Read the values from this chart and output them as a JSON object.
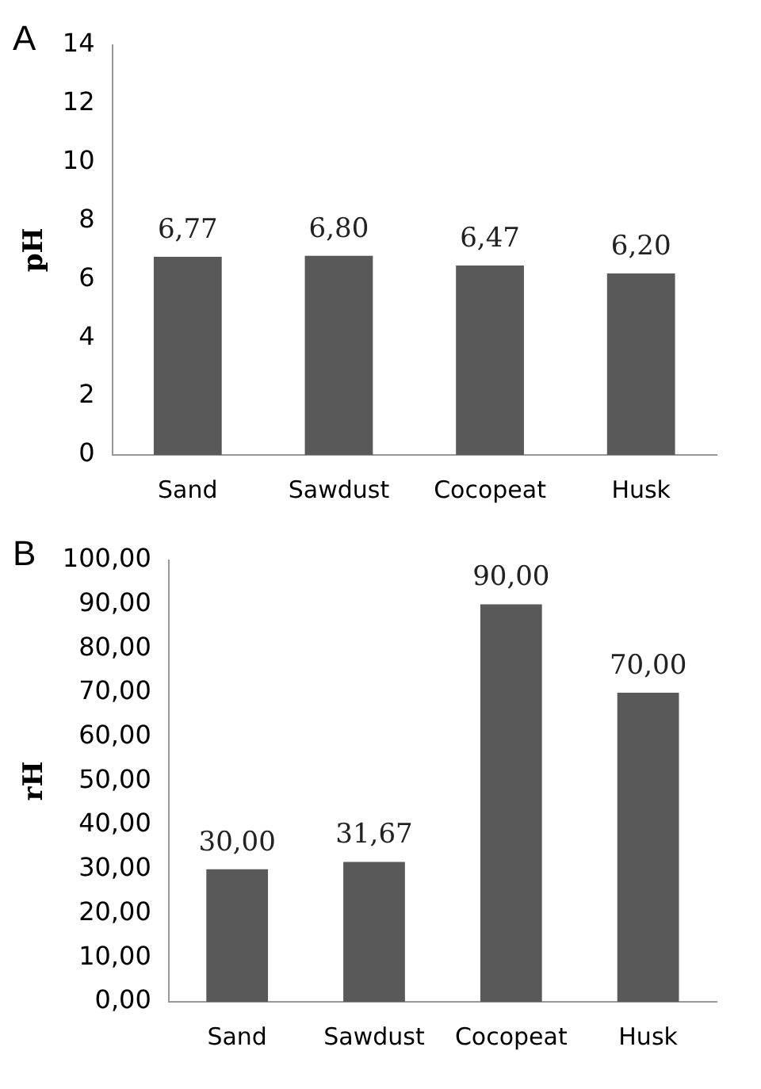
{
  "chart_data": [
    {
      "type": "bar",
      "title": "A",
      "ylabel": "pH",
      "categories": [
        "Sand",
        "Sawdust",
        "Cocopeat",
        "Husk"
      ],
      "values": [
        6.77,
        6.8,
        6.47,
        6.2
      ],
      "value_labels": [
        "6,77",
        "6,80",
        "6,47",
        "6,20"
      ],
      "color": "#595959",
      "ylim": [
        0,
        14
      ],
      "yticks": [
        0,
        2,
        4,
        6,
        8,
        10,
        12,
        14
      ],
      "grid": false,
      "legend": false
    },
    {
      "type": "bar",
      "title": "B",
      "ylabel": "rH",
      "categories": [
        "Sand",
        "Sawdust",
        "Cocopeat",
        "Husk"
      ],
      "values": [
        30,
        31.67,
        90,
        70
      ],
      "value_labels": [
        "30,00",
        "31,67",
        "90,00",
        "70,00"
      ],
      "color": "#595959",
      "ylim": [
        0,
        100
      ],
      "yticks": [
        {
          "value": 0,
          "label": "0,00"
        },
        {
          "value": 10,
          "label": "10,00"
        },
        {
          "value": 20,
          "label": "20,00"
        },
        {
          "value": 30,
          "label": "30,00"
        },
        {
          "value": 40,
          "label": "40,00"
        },
        {
          "value": 50,
          "label": "50,00"
        },
        {
          "value": 60,
          "label": "60,00"
        },
        {
          "value": 70,
          "label": "70,00"
        },
        {
          "value": 80,
          "label": "80,00"
        },
        {
          "value": 90,
          "label": "90,00"
        },
        {
          "value": 100,
          "label": "100,00"
        }
      ],
      "grid": false,
      "legend": false
    }
  ]
}
